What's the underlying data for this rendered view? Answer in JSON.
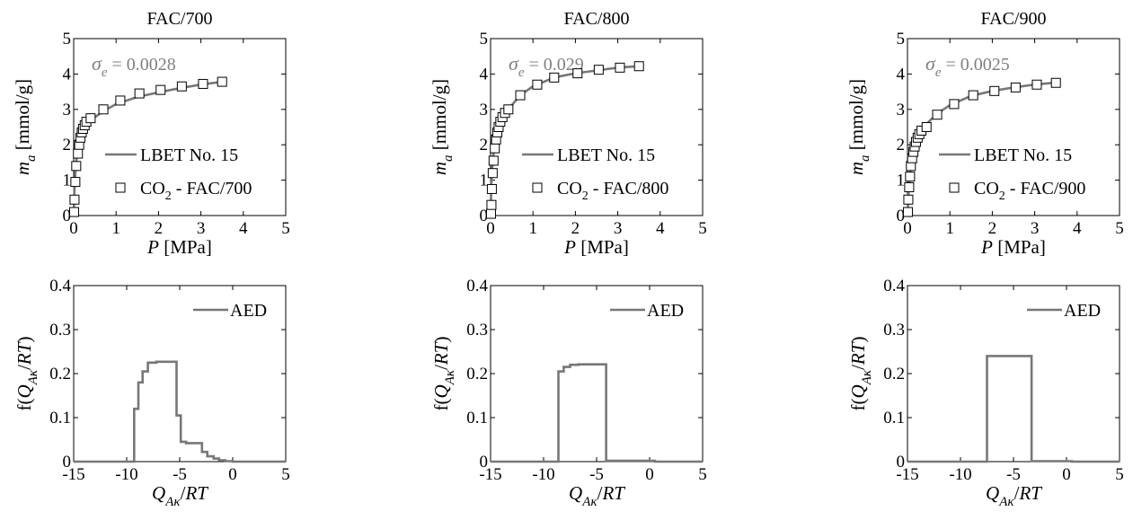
{
  "colors": {
    "series": "#777777",
    "annotation": "#808080",
    "axis": "#000000"
  },
  "chart_data": [
    {
      "type": "line",
      "panel": "isotherm",
      "title": "FAC/700",
      "xlabel": {
        "var": "P",
        "unit": " [MPa]"
      },
      "ylabel": {
        "var": "m",
        "sub": "a",
        "unit": " [mmol/g]"
      },
      "xlim": [
        0,
        5
      ],
      "ylim": [
        0,
        5
      ],
      "xticks": [
        "0",
        "1",
        "2",
        "3",
        "4",
        "5"
      ],
      "yticks": [
        "0",
        "1",
        "2",
        "3",
        "4",
        "5"
      ],
      "annotation": {
        "var": "σ",
        "sub": "e",
        "text": " = 0.0028"
      },
      "legend_position": "bottom-right",
      "series": [
        {
          "name": "LBET No. 15",
          "style": "line",
          "x": [
            0,
            0.01,
            0.02,
            0.04,
            0.06,
            0.08,
            0.1,
            0.15,
            0.2,
            0.25,
            0.3,
            0.4,
            0.5,
            0.7,
            1,
            1.5,
            2,
            2.5,
            3,
            3.5
          ],
          "y": [
            0,
            0.4,
            0.75,
            1.2,
            1.5,
            1.72,
            1.9,
            2.15,
            2.32,
            2.44,
            2.54,
            2.68,
            2.78,
            2.95,
            3.15,
            3.35,
            3.48,
            3.6,
            3.7,
            3.78
          ]
        },
        {
          "name": "CO₂ - FAC/700",
          "style": "markers",
          "x": [
            0.01,
            0.02,
            0.04,
            0.06,
            0.1,
            0.13,
            0.16,
            0.19,
            0.22,
            0.26,
            0.3,
            0.4,
            0.7,
            1.1,
            1.55,
            2.05,
            2.55,
            3.05,
            3.5
          ],
          "y": [
            0.1,
            0.45,
            0.95,
            1.4,
            1.75,
            2.0,
            2.2,
            2.35,
            2.45,
            2.55,
            2.65,
            2.75,
            3.0,
            3.25,
            3.45,
            3.55,
            3.65,
            3.72,
            3.78
          ]
        }
      ]
    },
    {
      "type": "line",
      "panel": "isotherm",
      "title": "FAC/800",
      "xlabel": {
        "var": "P",
        "unit": " [MPa]"
      },
      "ylabel": {
        "var": "m",
        "sub": "a",
        "unit": " [mmol/g]"
      },
      "xlim": [
        0,
        5
      ],
      "ylim": [
        0,
        5
      ],
      "xticks": [
        "0",
        "1",
        "2",
        "3",
        "4",
        "5"
      ],
      "yticks": [
        "0",
        "1",
        "2",
        "3",
        "4",
        "5"
      ],
      "annotation": {
        "var": "σ",
        "sub": "e",
        "text": " = 0.029"
      },
      "legend_position": "bottom-right",
      "series": [
        {
          "name": "LBET No. 15",
          "style": "line",
          "x": [
            0,
            0.01,
            0.02,
            0.04,
            0.06,
            0.08,
            0.1,
            0.15,
            0.2,
            0.3,
            0.4,
            0.5,
            0.7,
            1,
            1.5,
            2,
            2.5,
            3,
            3.5
          ],
          "y": [
            0,
            0.5,
            0.9,
            1.35,
            1.65,
            1.85,
            2.05,
            2.35,
            2.55,
            2.8,
            2.98,
            3.12,
            3.4,
            3.65,
            3.9,
            4.02,
            4.1,
            4.18,
            4.22
          ]
        },
        {
          "name": "CO₂ - FAC/800",
          "style": "markers",
          "x": [
            0.01,
            0.02,
            0.03,
            0.05,
            0.07,
            0.1,
            0.13,
            0.16,
            0.19,
            0.23,
            0.28,
            0.34,
            0.42,
            0.7,
            1.1,
            1.5,
            2.05,
            2.55,
            3.05,
            3.5
          ],
          "y": [
            0.05,
            0.3,
            0.75,
            1.2,
            1.55,
            1.9,
            2.15,
            2.35,
            2.5,
            2.65,
            2.78,
            2.9,
            3.0,
            3.4,
            3.7,
            3.9,
            4.02,
            4.12,
            4.18,
            4.22
          ]
        }
      ]
    },
    {
      "type": "line",
      "panel": "isotherm",
      "title": "FAC/900",
      "xlabel": {
        "var": "P",
        "unit": " [MPa]"
      },
      "ylabel": {
        "var": "m",
        "sub": "a",
        "unit": " [mmol/g]"
      },
      "xlim": [
        0,
        5
      ],
      "ylim": [
        0,
        5
      ],
      "xticks": [
        "0",
        "1",
        "2",
        "3",
        "4",
        "5"
      ],
      "yticks": [
        "0",
        "1",
        "2",
        "3",
        "4",
        "5"
      ],
      "annotation": {
        "var": "σ",
        "sub": "e",
        "text": " = 0.0025"
      },
      "legend_position": "bottom-right",
      "series": [
        {
          "name": "LBET No. 15",
          "style": "line",
          "x": [
            0,
            0.01,
            0.02,
            0.04,
            0.06,
            0.08,
            0.1,
            0.15,
            0.2,
            0.3,
            0.4,
            0.5,
            0.7,
            1,
            1.5,
            2,
            2.5,
            3,
            3.5
          ],
          "y": [
            0,
            0.25,
            0.5,
            0.85,
            1.15,
            1.4,
            1.6,
            1.9,
            2.1,
            2.35,
            2.52,
            2.65,
            2.88,
            3.12,
            3.38,
            3.52,
            3.62,
            3.7,
            3.76
          ]
        },
        {
          "name": "CO₂ - FAC/900",
          "style": "markers",
          "x": [
            0.01,
            0.02,
            0.04,
            0.06,
            0.08,
            0.11,
            0.14,
            0.17,
            0.2,
            0.24,
            0.28,
            0.33,
            0.45,
            0.7,
            1.1,
            1.55,
            2.05,
            2.55,
            3.05,
            3.5
          ],
          "y": [
            0.1,
            0.45,
            0.8,
            1.1,
            1.4,
            1.62,
            1.8,
            1.95,
            2.08,
            2.2,
            2.3,
            2.4,
            2.5,
            2.85,
            3.15,
            3.4,
            3.52,
            3.62,
            3.7,
            3.75
          ]
        }
      ]
    },
    {
      "type": "line",
      "panel": "distribution",
      "title": "",
      "xlabel": {
        "var": "Q",
        "sub": "Aκ",
        "unit": "/RT"
      },
      "ylabel": {
        "pre": "f(",
        "var": "Q",
        "sub": "Aκ",
        "unit": "/RT)"
      },
      "xlim": [
        -15,
        5
      ],
      "ylim": [
        0,
        0.4
      ],
      "xticks": [
        "-15",
        "-10",
        "-5",
        "0",
        "5"
      ],
      "yticks": [
        "0",
        "0.1",
        "0.2",
        "0.3",
        "0.4"
      ],
      "legend_position": "top-right",
      "series": [
        {
          "name": "AED",
          "style": "step",
          "x": [
            -15,
            -9.3,
            -9.3,
            -8.9,
            -8.9,
            -8.5,
            -8.5,
            -8.0,
            -8.0,
            -7.2,
            -7.2,
            -5.3,
            -5.3,
            -4.9,
            -4.9,
            -4.4,
            -4.4,
            -2.9,
            -2.9,
            -2.4,
            -2.4,
            -1.8,
            -1.8,
            -1.3,
            -1.3,
            -0.7,
            -0.7,
            0,
            0,
            5
          ],
          "y": [
            0,
            0,
            0.12,
            0.12,
            0.18,
            0.18,
            0.205,
            0.205,
            0.225,
            0.225,
            0.227,
            0.227,
            0.105,
            0.105,
            0.045,
            0.045,
            0.042,
            0.042,
            0.022,
            0.022,
            0.012,
            0.012,
            0.007,
            0.007,
            0.003,
            0.003,
            0.001,
            0.001,
            0,
            0
          ]
        }
      ]
    },
    {
      "type": "line",
      "panel": "distribution",
      "title": "",
      "xlabel": {
        "var": "Q",
        "sub": "Aκ",
        "unit": "/RT"
      },
      "ylabel": {
        "pre": "f(",
        "var": "Q",
        "sub": "Aκ",
        "unit": "/RT)"
      },
      "xlim": [
        -15,
        5
      ],
      "ylim": [
        0,
        0.4
      ],
      "xticks": [
        "-15",
        "-10",
        "-5",
        "0",
        "5"
      ],
      "yticks": [
        "0",
        "0.1",
        "0.2",
        "0.3",
        "0.4"
      ],
      "legend_position": "top-right",
      "series": [
        {
          "name": "AED",
          "style": "step",
          "x": [
            -15,
            -8.6,
            -8.6,
            -8.1,
            -8.1,
            -7.5,
            -7.5,
            -6.7,
            -6.7,
            -4.1,
            -4.1,
            0.5,
            0.5,
            5
          ],
          "y": [
            0,
            0,
            0.205,
            0.205,
            0.215,
            0.215,
            0.22,
            0.22,
            0.221,
            0.221,
            0.002,
            0.002,
            0,
            0
          ]
        }
      ]
    },
    {
      "type": "line",
      "panel": "distribution",
      "title": "",
      "xlabel": {
        "var": "Q",
        "sub": "Aκ",
        "unit": "/RT"
      },
      "ylabel": {
        "pre": "f(",
        "var": "Q",
        "sub": "Aκ",
        "unit": "/RT)"
      },
      "xlim": [
        -15,
        5
      ],
      "ylim": [
        0,
        0.4
      ],
      "xticks": [
        "-15",
        "-10",
        "-5",
        "0",
        "5"
      ],
      "yticks": [
        "0",
        "0.1",
        "0.2",
        "0.3",
        "0.4"
      ],
      "legend_position": "top-right",
      "series": [
        {
          "name": "AED",
          "style": "step",
          "x": [
            -15,
            -7.5,
            -7.5,
            -3.3,
            -3.3,
            0.5,
            0.5,
            5
          ],
          "y": [
            0,
            0,
            0.24,
            0.24,
            0.001,
            0.001,
            0,
            0
          ]
        }
      ]
    }
  ]
}
